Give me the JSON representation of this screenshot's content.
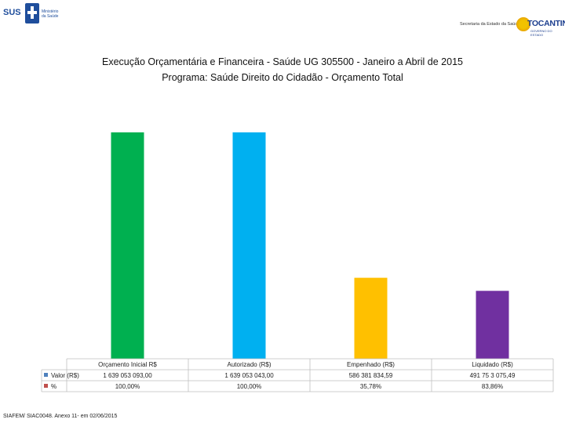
{
  "header": {
    "left_logo_text": "SUS",
    "left_logo_small": [
      "Ministério",
      "da Saúde"
    ],
    "secretaria_text": "Secretaria da Estado da Saúde",
    "right_logo_text": "TOCANTINS",
    "right_logo_sub": "GOVERNO DO ESTADO"
  },
  "chart_data": {
    "type": "bar",
    "title": "Execução Orçamentária e Financeira -  Saúde UG 305500 -  Janeiro a Abril de 2015",
    "subtitle": "Programa: Saúde Direito do Cidadão - Orçamento Total",
    "categories": [
      "Orçamento Inicial R$",
      "Autorizado (R$)",
      "Empenhado (R$)",
      "Liquidado (R$)"
    ],
    "values": [
      1639053093.0,
      1639053043.0,
      586381834.59,
      491753075.49
    ],
    "colors": [
      "#00b050",
      "#00b0f0",
      "#ffc000",
      "#7030a0"
    ],
    "ylim": [
      0,
      1639053093.0
    ],
    "table": {
      "rows": [
        {
          "label": "Valor (R$)",
          "marker_color": "#4f81bd",
          "cells": [
            "1 639 053 093,00",
            "1 639 053 043,00",
            "586 381 834,59",
            "491 75 3 075,49"
          ]
        },
        {
          "label": "%",
          "marker_color": "#c0504d",
          "cells": [
            "100,00%",
            "100,00%",
            "35,78%",
            "83,86%"
          ]
        }
      ]
    }
  },
  "footer": {
    "source": "SIAFEM/ SIAC0048. Anexo 11- em 02/06/2015"
  }
}
